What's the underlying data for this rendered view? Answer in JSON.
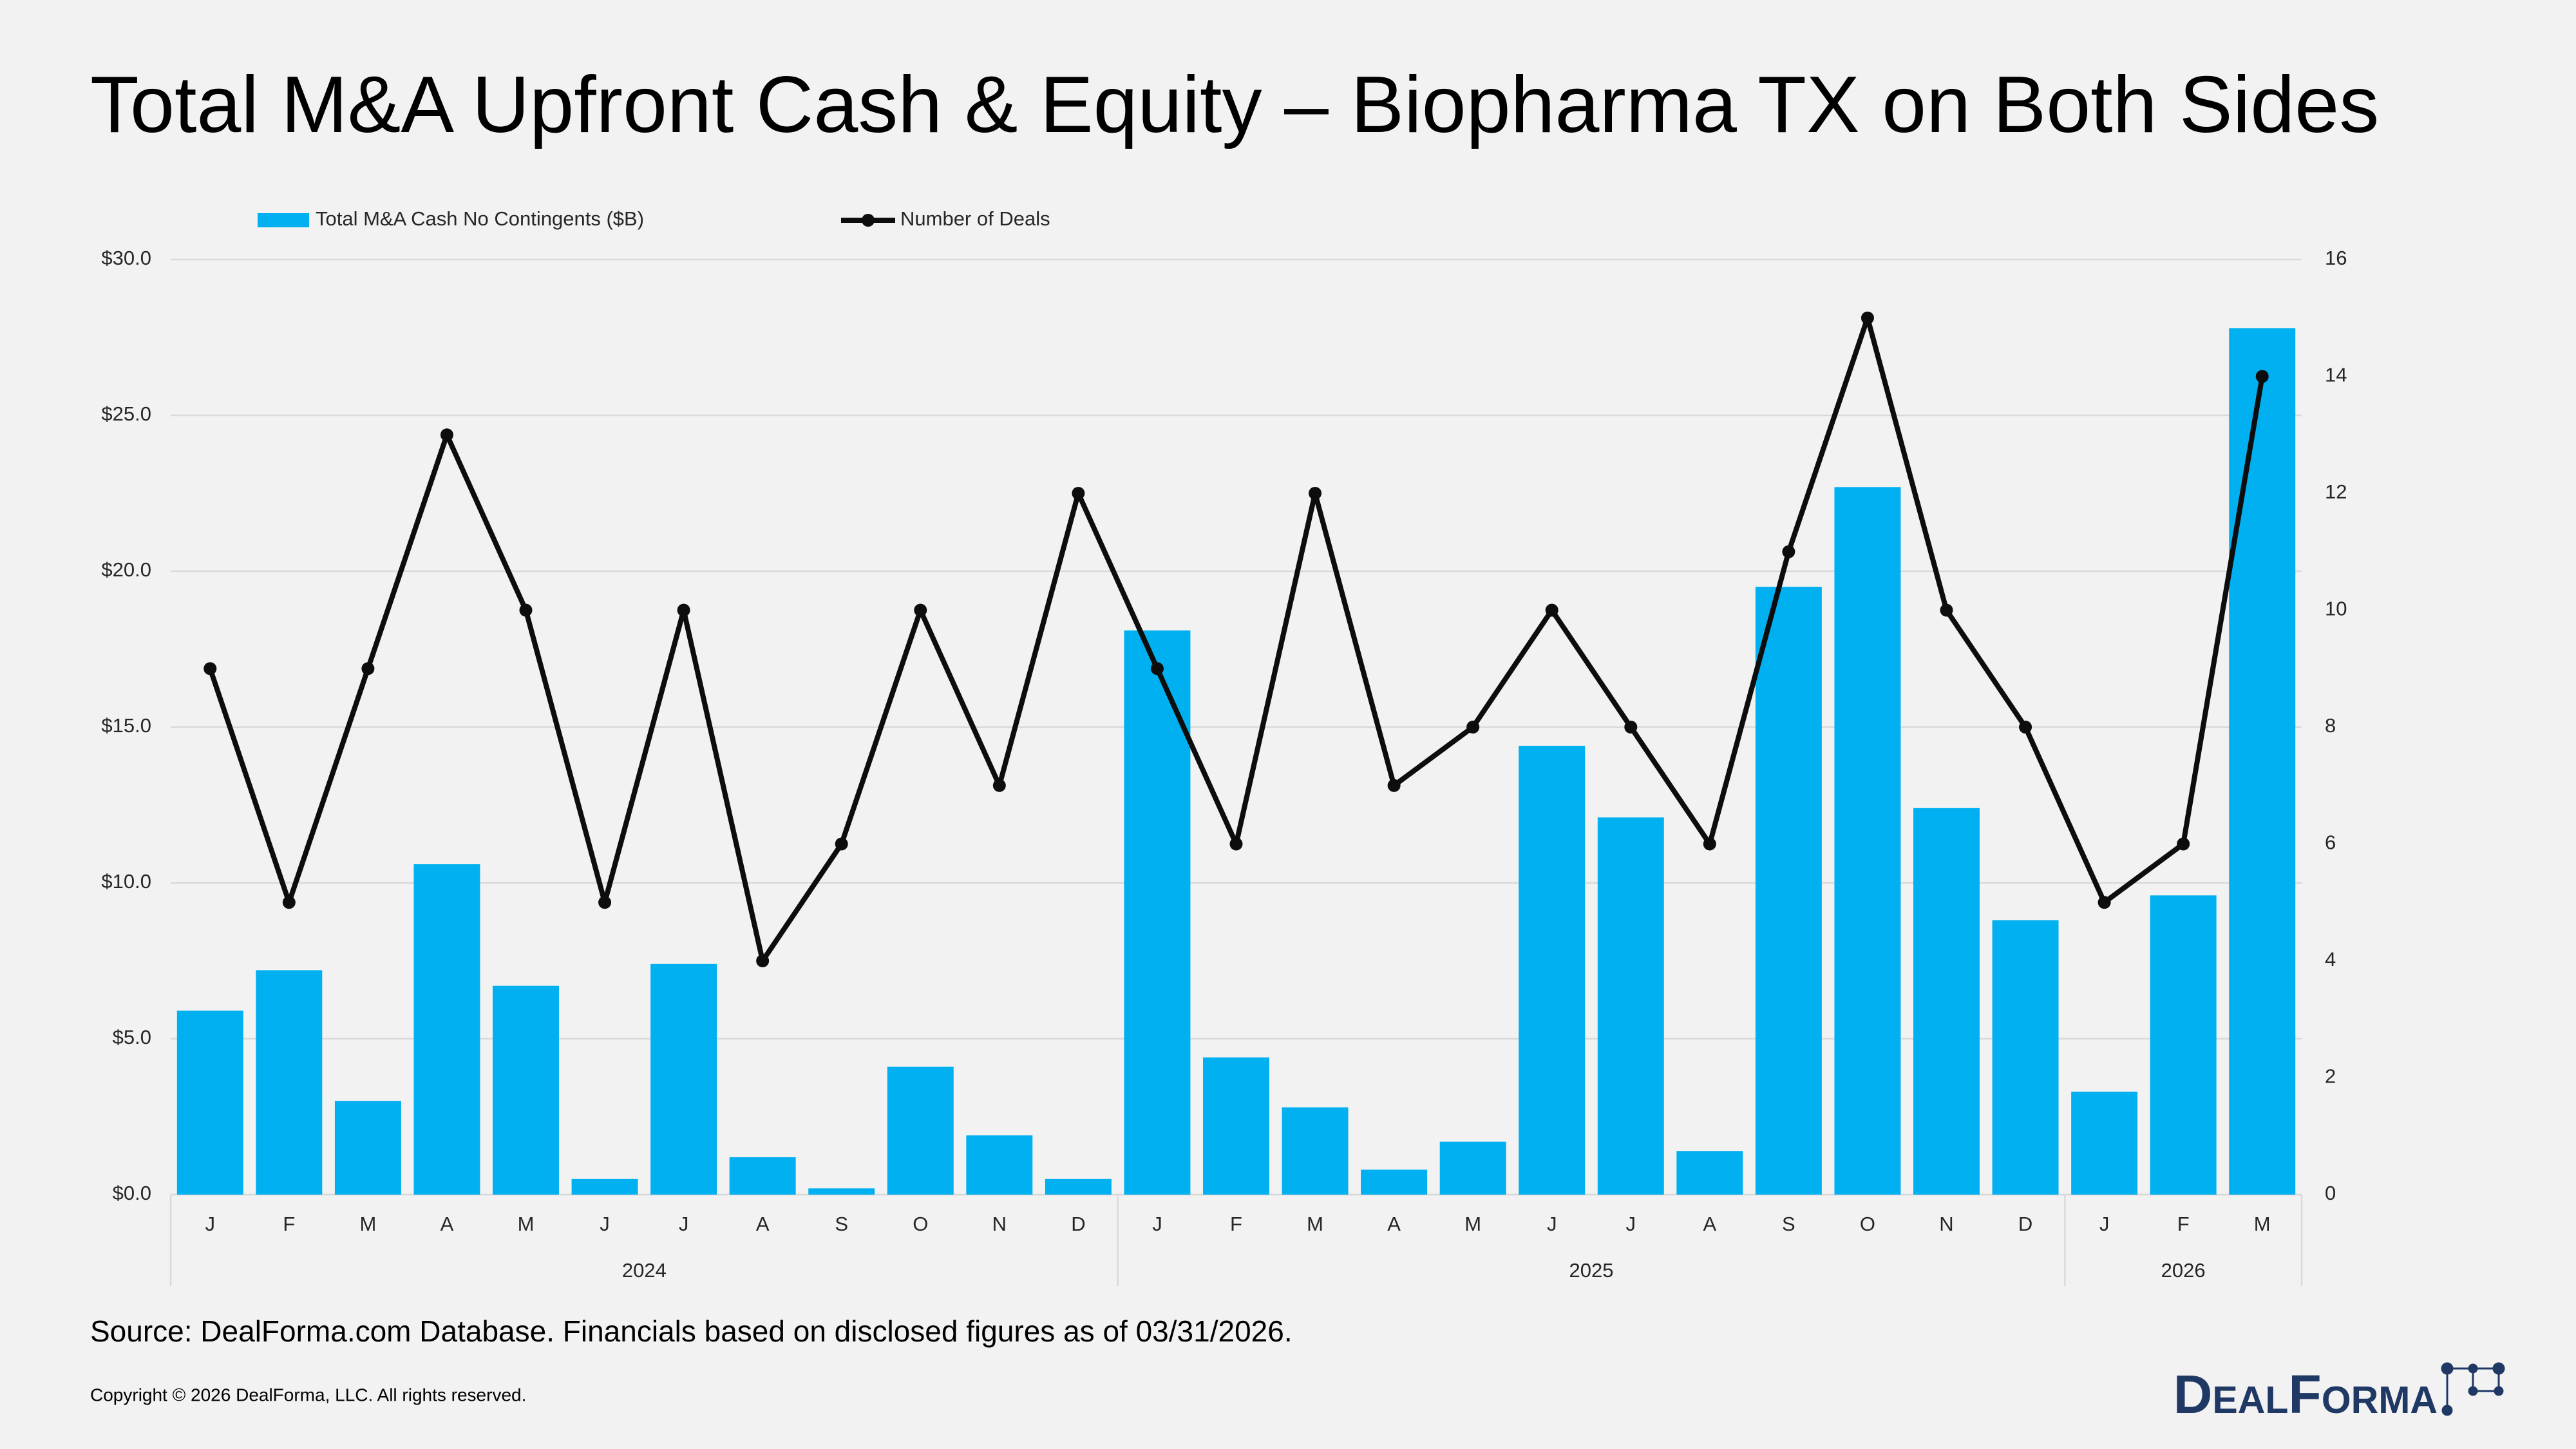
{
  "chart_data": {
    "type": "combo",
    "title": "Total M&A Upfront Cash & Equity – Biopharma TX on Both Sides",
    "categories": [
      "J",
      "F",
      "M",
      "A",
      "M",
      "J",
      "J",
      "A",
      "S",
      "O",
      "N",
      "D",
      "J",
      "F",
      "M",
      "A",
      "M",
      "J",
      "J",
      "A",
      "S",
      "O",
      "N",
      "D",
      "J",
      "F",
      "M"
    ],
    "x_groups": [
      {
        "label": "2024",
        "size": 12
      },
      {
        "label": "2025",
        "size": 12
      },
      {
        "label": "2026",
        "size": 3
      }
    ],
    "series": [
      {
        "name": "Total M&A Cash No Contingents ($B)",
        "type": "bar",
        "color": "#00b0f0",
        "values": [
          5.9,
          7.2,
          3.0,
          10.6,
          6.7,
          0.5,
          7.4,
          1.2,
          0.2,
          4.1,
          1.9,
          0.5,
          18.1,
          4.4,
          2.8,
          0.8,
          1.7,
          14.4,
          12.1,
          1.4,
          19.5,
          22.7,
          12.4,
          8.8,
          3.3,
          9.6,
          27.8
        ]
      },
      {
        "name": "Number of Deals",
        "type": "line",
        "axis": "y2",
        "color": "#0d0d0d",
        "values": [
          9,
          5,
          9,
          13,
          10,
          5,
          10,
          4,
          6,
          10,
          7,
          12,
          9,
          6,
          12,
          7,
          8,
          10,
          8,
          6,
          11,
          15,
          10,
          8,
          5,
          6,
          14
        ]
      }
    ],
    "ylim": [
      0,
      30
    ],
    "yticks": [
      {
        "value": 0,
        "label": "$0.0"
      },
      {
        "value": 5,
        "label": "$5.0"
      },
      {
        "value": 10,
        "label": "$10.0"
      },
      {
        "value": 15,
        "label": "$15.0"
      },
      {
        "value": 20,
        "label": "$20.0"
      },
      {
        "value": 25,
        "label": "$25.0"
      },
      {
        "value": 30,
        "label": "$30.0"
      }
    ],
    "y2lim": [
      0,
      16
    ],
    "y2ticks": [
      0,
      2,
      4,
      6,
      8,
      10,
      12,
      14,
      16
    ],
    "grid": true,
    "legend": "top",
    "source": "Source: DealForma.com Database. Financials based on disclosed figures as of 03/31/2026.",
    "copyright": "Copyright © 2026 DealForma, LLC. All rights reserved.",
    "logo": "DealForma"
  }
}
